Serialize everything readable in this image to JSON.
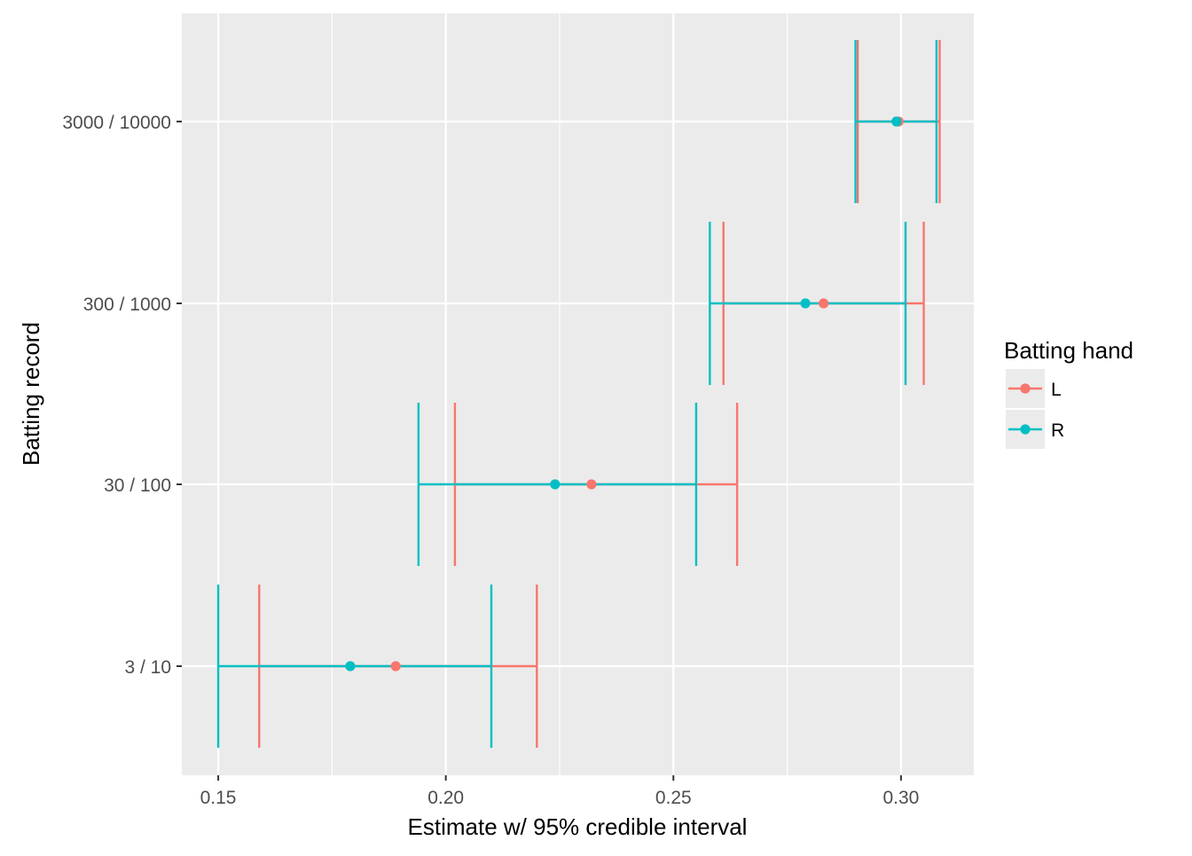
{
  "chart_data": {
    "type": "errorbar",
    "title": "",
    "xlabel": "Estimate w/ 95% credible interval",
    "ylabel": "Batting record",
    "xlim": [
      0.142,
      0.316
    ],
    "x_ticks": [
      0.15,
      0.2,
      0.25,
      0.3
    ],
    "x_tick_labels": [
      "0.15",
      "0.20",
      "0.25",
      "0.30"
    ],
    "x_minor_ticks": [
      0.175,
      0.225,
      0.275
    ],
    "categories": [
      "3 / 10",
      "30 / 100",
      "300 / 1000",
      "3000 / 10000"
    ],
    "grid": true,
    "legend": {
      "title": "Batting hand",
      "position": "right"
    },
    "series": [
      {
        "name": "L",
        "color": "#F8766D",
        "estimate": [
          0.189,
          0.232,
          0.283,
          0.2995
        ],
        "lower": [
          0.159,
          0.202,
          0.261,
          0.2905
        ],
        "upper": [
          0.22,
          0.264,
          0.305,
          0.3085
        ]
      },
      {
        "name": "R",
        "color": "#00BFC4",
        "estimate": [
          0.179,
          0.224,
          0.279,
          0.299
        ],
        "lower": [
          0.15,
          0.194,
          0.258,
          0.29
        ],
        "upper": [
          0.21,
          0.255,
          0.301,
          0.3078
        ]
      }
    ]
  },
  "colors": {
    "panel_background": "#EBEBEB",
    "grid": "#FFFFFF",
    "axis_text": "#4D4D4D",
    "axis_title": "#000000"
  }
}
